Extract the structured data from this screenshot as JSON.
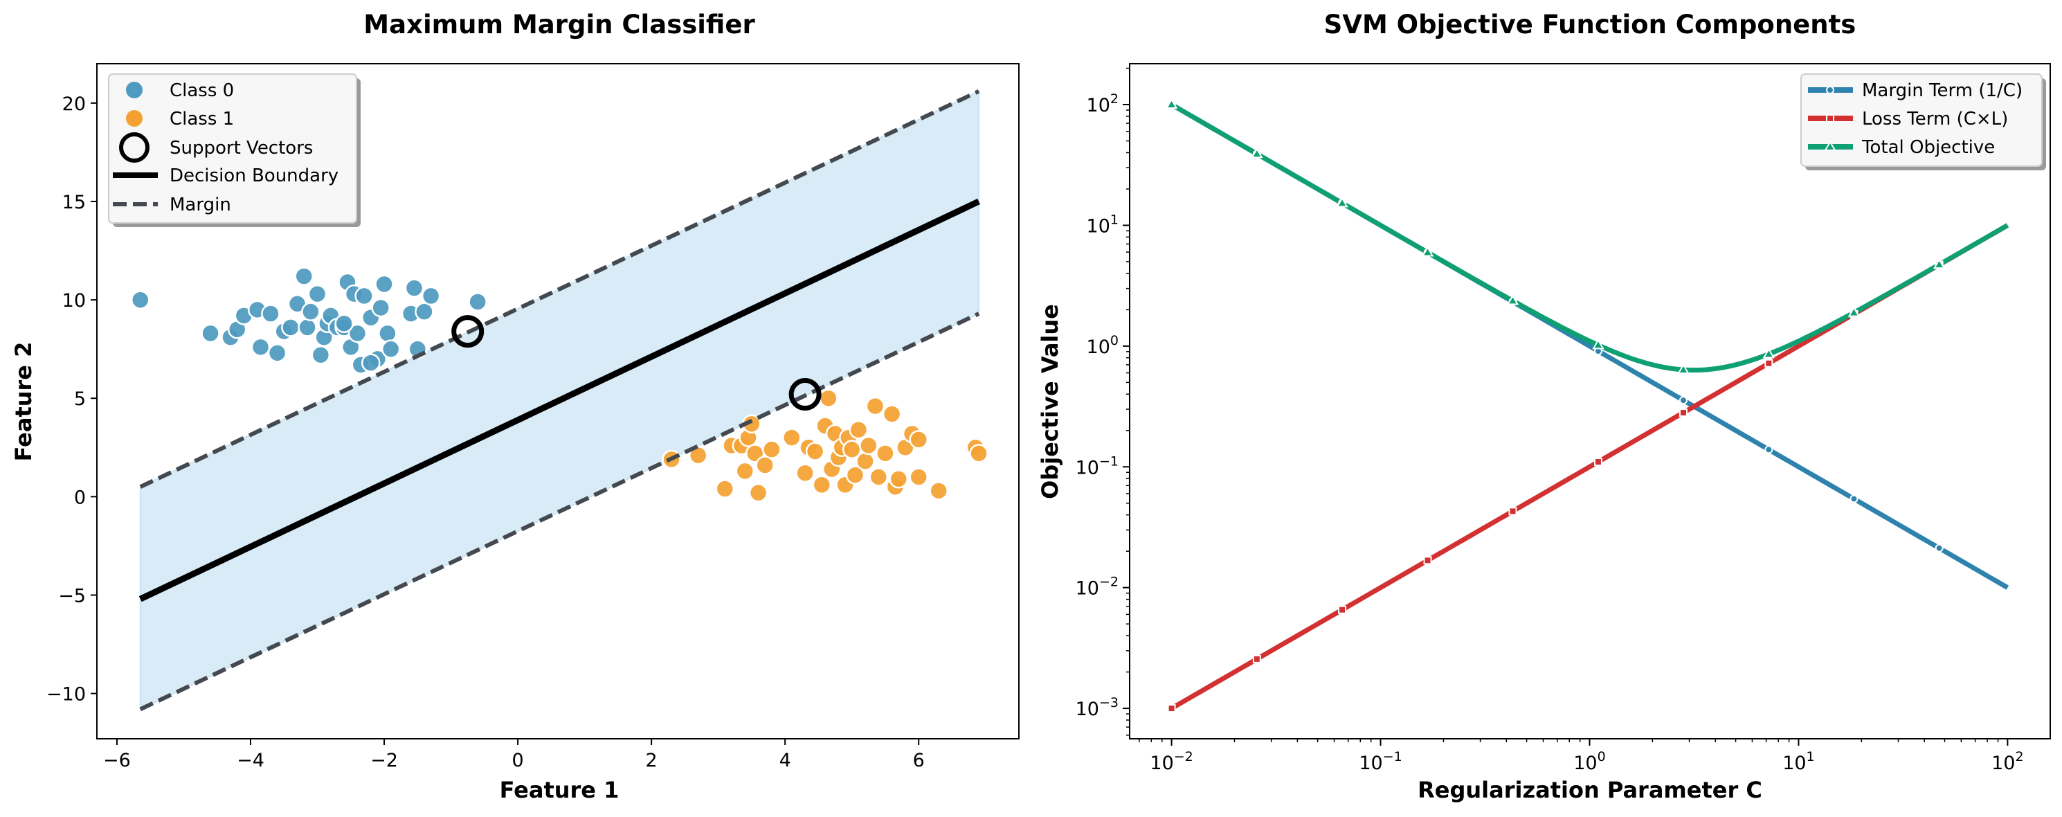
{
  "colors": {
    "class0": "#4E9AC0",
    "class1": "#F4A132",
    "margin_fill": "#D8EBF6",
    "boundary": "#000000",
    "margin_line": "#444950",
    "margin_term": "#2E83AE",
    "loss_term": "#D33031",
    "total": "#0E9F72"
  },
  "chart_data": [
    {
      "type": "scatter",
      "title": "Maximum Margin Classifier",
      "xlabel": "Feature 1",
      "ylabel": "Feature 2",
      "xlim": [
        -6.3,
        7.5
      ],
      "ylim": [
        -12.3,
        22.0
      ],
      "xticks": [
        -6,
        -4,
        -2,
        0,
        2,
        4,
        6
      ],
      "xtick_labels": [
        "−6",
        "−4",
        "−2",
        "0",
        "2",
        "4",
        "6"
      ],
      "yticks": [
        -10,
        -5,
        0,
        5,
        10,
        15,
        20
      ],
      "ytick_labels": [
        "−10",
        "−5",
        "0",
        "5",
        "10",
        "15",
        "20"
      ],
      "grid": false,
      "legend_position": "top-left",
      "legend": [
        "Class 0",
        "Class 1",
        "Support Vectors",
        "Decision Boundary",
        "Margin"
      ],
      "decision_boundary": {
        "x": [
          -5.65,
          6.9
        ],
        "y": [
          -5.2,
          15.0
        ]
      },
      "margin_upper": {
        "x": [
          -5.65,
          6.9
        ],
        "y": [
          0.5,
          20.6
        ]
      },
      "margin_lower": {
        "x": [
          -5.65,
          6.9
        ],
        "y": [
          -10.8,
          9.3
        ]
      },
      "support_vectors": [
        [
          -0.75,
          8.4
        ],
        [
          4.3,
          5.2
        ]
      ],
      "series": [
        {
          "name": "Class 0",
          "points": [
            [
              -5.65,
              10.0
            ],
            [
              -4.6,
              8.3
            ],
            [
              -4.3,
              8.1
            ],
            [
              -4.2,
              8.5
            ],
            [
              -4.1,
              9.2
            ],
            [
              -3.9,
              9.5
            ],
            [
              -3.85,
              7.6
            ],
            [
              -3.7,
              9.3
            ],
            [
              -3.6,
              7.3
            ],
            [
              -3.5,
              8.4
            ],
            [
              -3.4,
              8.6
            ],
            [
              -3.3,
              9.8
            ],
            [
              -3.2,
              11.2
            ],
            [
              -3.15,
              8.6
            ],
            [
              -3.1,
              9.4
            ],
            [
              -3.0,
              10.3
            ],
            [
              -2.95,
              7.2
            ],
            [
              -2.9,
              8.1
            ],
            [
              -2.85,
              8.8
            ],
            [
              -2.8,
              9.2
            ],
            [
              -2.7,
              8.6
            ],
            [
              -2.6,
              8.6
            ],
            [
              -2.55,
              10.9
            ],
            [
              -2.5,
              7.6
            ],
            [
              -2.45,
              10.3
            ],
            [
              -2.4,
              8.3
            ],
            [
              -2.35,
              6.7
            ],
            [
              -2.3,
              10.2
            ],
            [
              -2.2,
              9.1
            ],
            [
              -2.1,
              7.0
            ],
            [
              -2.05,
              9.6
            ],
            [
              -2.0,
              10.8
            ],
            [
              -1.95,
              8.3
            ],
            [
              -1.9,
              7.5
            ],
            [
              -2.6,
              8.8
            ],
            [
              -2.2,
              6.8
            ],
            [
              -1.6,
              9.3
            ],
            [
              -1.55,
              10.6
            ],
            [
              -1.5,
              7.5
            ],
            [
              -1.4,
              9.4
            ],
            [
              -1.3,
              10.2
            ],
            [
              -0.6,
              9.9
            ]
          ]
        },
        {
          "name": "Class 1",
          "points": [
            [
              2.3,
              1.9
            ],
            [
              2.7,
              2.1
            ],
            [
              3.1,
              0.4
            ],
            [
              3.2,
              2.6
            ],
            [
              3.35,
              2.6
            ],
            [
              3.4,
              1.3
            ],
            [
              3.45,
              3.0
            ],
            [
              3.5,
              3.7
            ],
            [
              3.55,
              2.2
            ],
            [
              3.6,
              0.2
            ],
            [
              3.7,
              1.6
            ],
            [
              3.8,
              2.4
            ],
            [
              4.1,
              3.0
            ],
            [
              4.3,
              1.2
            ],
            [
              4.35,
              2.5
            ],
            [
              4.45,
              2.3
            ],
            [
              4.55,
              0.6
            ],
            [
              4.6,
              3.6
            ],
            [
              4.65,
              5.0
            ],
            [
              4.7,
              1.4
            ],
            [
              4.75,
              3.2
            ],
            [
              4.8,
              2.0
            ],
            [
              4.85,
              2.5
            ],
            [
              4.9,
              0.6
            ],
            [
              4.95,
              3.0
            ],
            [
              5.0,
              2.4
            ],
            [
              5.05,
              1.1
            ],
            [
              5.1,
              3.4
            ],
            [
              5.2,
              1.8
            ],
            [
              5.25,
              2.6
            ],
            [
              5.35,
              4.6
            ],
            [
              5.4,
              1.0
            ],
            [
              5.5,
              2.2
            ],
            [
              5.6,
              4.2
            ],
            [
              5.65,
              0.5
            ],
            [
              5.7,
              0.9
            ],
            [
              5.8,
              2.5
            ],
            [
              5.9,
              3.2
            ],
            [
              6.0,
              2.9
            ],
            [
              6.0,
              1.0
            ],
            [
              6.3,
              0.3
            ],
            [
              6.85,
              2.5
            ],
            [
              6.9,
              2.2
            ]
          ]
        }
      ]
    },
    {
      "type": "line",
      "title": "SVM Objective Function Components",
      "xlabel": "Regularization Parameter C",
      "ylabel": "Objective Value",
      "xscale": "log",
      "yscale": "log",
      "xlim": [
        0.0063,
        160
      ],
      "ylim": [
        0.00056,
        218
      ],
      "xticks": [
        0.01,
        0.1,
        1,
        10,
        100
      ],
      "xtick_exponents": [
        "−2",
        "−1",
        "0",
        "1",
        "2"
      ],
      "yticks": [
        0.001,
        0.01,
        0.1,
        1,
        10,
        100
      ],
      "ytick_exponents": [
        "−3",
        "−2",
        "−1",
        "0",
        "1",
        "2"
      ],
      "tick_base": "10",
      "grid": false,
      "legend_position": "top-right",
      "marker_x": [
        0.01,
        0.0256,
        0.0655,
        0.168,
        0.429,
        1.1,
        2.81,
        7.2,
        18.4,
        47.1
      ],
      "series": [
        {
          "name": "Margin Term (1/C)",
          "marker": "circle",
          "x_range": [
            0.01,
            100
          ],
          "function": "1/C"
        },
        {
          "name": "Loss Term (C×L)",
          "marker": "square",
          "x_range": [
            0.01,
            100
          ],
          "function": "0.1*C"
        },
        {
          "name": "Total Objective",
          "marker": "triangle",
          "x_range": [
            0.01,
            100
          ],
          "function": "1/C + 0.1*C"
        }
      ]
    }
  ]
}
